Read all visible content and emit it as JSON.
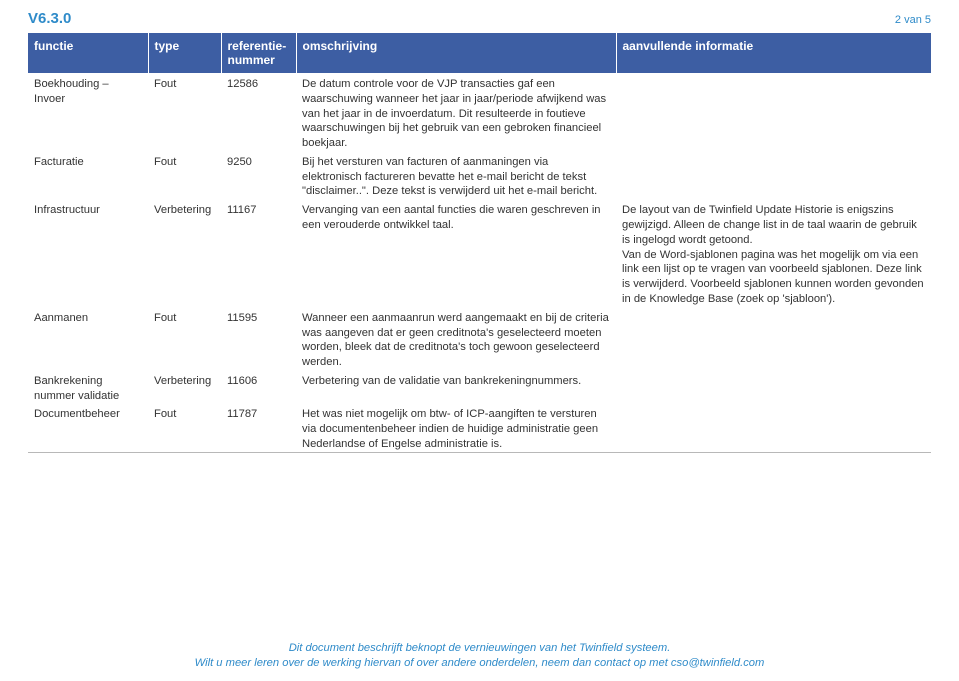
{
  "meta": {
    "version": "V6.3.0",
    "page_label": "2 van 5"
  },
  "colors": {
    "brand_blue": "#2f8bc9",
    "header_bg": "#3d5ea3",
    "header_fg": "#ffffff",
    "text": "#333333",
    "row_border": "#b8b8b8"
  },
  "table": {
    "headers": {
      "functie": "functie",
      "type": "type",
      "referentie": "referentie-\nnummer",
      "omschrijving": "omschrijving",
      "aanvullende": "aanvullende informatie"
    },
    "rows": [
      {
        "functie": "Boekhouding – Invoer",
        "type": "Fout",
        "ref": "12586",
        "omschrijving": "De datum controle voor de VJP transacties gaf een waarschuwing wanneer het jaar in jaar/periode afwijkend was van het jaar in de invoerdatum. Dit resulteerde in foutieve waarschuwingen bij het gebruik van een gebroken financieel boekjaar.",
        "aanvullende": ""
      },
      {
        "functie": "Facturatie",
        "type": "Fout",
        "ref": "9250",
        "omschrijving": "Bij het versturen van facturen of aanmaningen via elektronisch factureren bevatte het e-mail bericht de tekst \"disclaimer..\". Deze tekst is verwijderd uit het e-mail bericht.",
        "aanvullende": ""
      },
      {
        "functie": "Infrastructuur",
        "type": "Verbetering",
        "ref": "11167",
        "omschrijving": "Vervanging van een aantal functies die waren geschreven in een verouderde ontwikkel taal.",
        "aanvullende": "De layout van de Twinfield Update Historie is enigszins gewijzigd. Alleen de change list in de taal waarin de gebruik is ingelogd wordt getoond.\nVan de Word-sjablonen pagina was het mogelijk om via een link een lijst op te vragen van voorbeeld sjablonen. Deze link is verwijderd. Voorbeeld sjablonen kunnen worden gevonden in de Knowledge Base (zoek op 'sjabloon')."
      },
      {
        "functie": "Aanmanen",
        "type": "Fout",
        "ref": "11595",
        "omschrijving": "Wanneer een aanmaanrun werd aangemaakt en bij de criteria was aangeven dat er geen creditnota's geselecteerd moeten worden, bleek dat de creditnota's toch gewoon geselecteerd werden.",
        "aanvullende": ""
      },
      {
        "functie": "Bankrekening nummer validatie",
        "type": "Verbetering",
        "ref": "11606",
        "omschrijving": "Verbetering van de validatie van bankrekeningnummers.",
        "aanvullende": ""
      },
      {
        "functie": "Documentbeheer",
        "type": "Fout",
        "ref": "11787",
        "omschrijving": "Het was niet mogelijk om btw- of ICP-aangiften te versturen via documentenbeheer indien de huidige administratie geen Nederlandse of Engelse administratie is.",
        "aanvullende": ""
      }
    ]
  },
  "footer": {
    "line1": "Dit document beschrijft beknopt de vernieuwingen van het Twinfield systeem.",
    "line2": "Wilt u meer leren over de werking hiervan of over andere onderdelen, neem dan contact op met cso@twinfield.com"
  }
}
